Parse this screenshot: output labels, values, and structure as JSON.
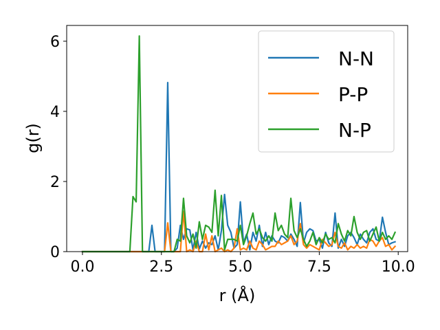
{
  "chart_data": {
    "type": "line",
    "xlabel": "r (Å)",
    "ylabel": "g(r)",
    "xlim": [
      -0.5,
      10.3
    ],
    "ylim": [
      0,
      6.45
    ],
    "xticks": [
      0.0,
      2.5,
      5.0,
      7.5,
      10.0
    ],
    "xtick_labels": [
      "0.0",
      "2.5",
      "5.0",
      "7.5",
      "10.0"
    ],
    "yticks": [
      0,
      2,
      4,
      6
    ],
    "ytick_labels": [
      "0",
      "2",
      "4",
      "6"
    ],
    "grid": false,
    "legend": "top-right",
    "series": [
      {
        "name": "N-N",
        "color": "#1f77b4",
        "points": [
          [
            0.0,
            0
          ],
          [
            0.1,
            0
          ],
          [
            0.2,
            0
          ],
          [
            0.3,
            0
          ],
          [
            0.4,
            0
          ],
          [
            0.5,
            0
          ],
          [
            0.6,
            0
          ],
          [
            0.7,
            0
          ],
          [
            0.8,
            0
          ],
          [
            0.9,
            0
          ],
          [
            1.0,
            0
          ],
          [
            1.1,
            0
          ],
          [
            1.2,
            0
          ],
          [
            1.3,
            0
          ],
          [
            1.4,
            0
          ],
          [
            1.5,
            0
          ],
          [
            1.6,
            0
          ],
          [
            1.7,
            0
          ],
          [
            1.8,
            0
          ],
          [
            1.9,
            0
          ],
          [
            2.0,
            0
          ],
          [
            2.1,
            0
          ],
          [
            2.2,
            0.75
          ],
          [
            2.3,
            0
          ],
          [
            2.4,
            0
          ],
          [
            2.5,
            0
          ],
          [
            2.6,
            0
          ],
          [
            2.7,
            4.82
          ],
          [
            2.8,
            0
          ],
          [
            2.9,
            0
          ],
          [
            3.0,
            0.1
          ],
          [
            3.1,
            0.75
          ],
          [
            3.2,
            0.35
          ],
          [
            3.3,
            0.65
          ],
          [
            3.4,
            0.62
          ],
          [
            3.5,
            0.05
          ],
          [
            3.6,
            0.55
          ],
          [
            3.7,
            0.08
          ],
          [
            3.8,
            0.3
          ],
          [
            3.9,
            0.1
          ],
          [
            4.0,
            0.25
          ],
          [
            4.1,
            0.2
          ],
          [
            4.2,
            0.45
          ],
          [
            4.3,
            0.05
          ],
          [
            4.4,
            0.6
          ],
          [
            4.5,
            1.63
          ],
          [
            4.6,
            0.75
          ],
          [
            4.7,
            0.55
          ],
          [
            4.8,
            0.1
          ],
          [
            4.9,
            0.2
          ],
          [
            5.0,
            1.42
          ],
          [
            5.1,
            0.25
          ],
          [
            5.2,
            0.5
          ],
          [
            5.3,
            0.05
          ],
          [
            5.4,
            0.55
          ],
          [
            5.5,
            0.3
          ],
          [
            5.6,
            0.75
          ],
          [
            5.7,
            0.15
          ],
          [
            5.8,
            0.55
          ],
          [
            5.9,
            0.2
          ],
          [
            6.0,
            0.45
          ],
          [
            6.1,
            0.3
          ],
          [
            6.2,
            0.25
          ],
          [
            6.3,
            0.45
          ],
          [
            6.4,
            0.4
          ],
          [
            6.5,
            0.3
          ],
          [
            6.6,
            0.5
          ],
          [
            6.7,
            0.35
          ],
          [
            6.8,
            0.15
          ],
          [
            6.9,
            1.4
          ],
          [
            7.0,
            0.25
          ],
          [
            7.1,
            0.55
          ],
          [
            7.2,
            0.65
          ],
          [
            7.3,
            0.6
          ],
          [
            7.4,
            0.3
          ],
          [
            7.5,
            0.35
          ],
          [
            7.6,
            0.1
          ],
          [
            7.7,
            0.55
          ],
          [
            7.8,
            0.25
          ],
          [
            7.9,
            0.15
          ],
          [
            8.0,
            1.1
          ],
          [
            8.1,
            0.1
          ],
          [
            8.2,
            0.35
          ],
          [
            8.3,
            0.15
          ],
          [
            8.4,
            0.45
          ],
          [
            8.5,
            0.55
          ],
          [
            8.6,
            0.4
          ],
          [
            8.7,
            0.2
          ],
          [
            8.8,
            0.5
          ],
          [
            8.9,
            0.35
          ],
          [
            9.0,
            0.25
          ],
          [
            9.1,
            0.55
          ],
          [
            9.2,
            0.65
          ],
          [
            9.3,
            0.35
          ],
          [
            9.4,
            0.3
          ],
          [
            9.5,
            0.98
          ],
          [
            9.6,
            0.55
          ],
          [
            9.7,
            0.2
          ],
          [
            9.8,
            0.25
          ],
          [
            9.9,
            0.28
          ]
        ]
      },
      {
        "name": "P-P",
        "color": "#ff7f0e",
        "points": [
          [
            0.0,
            0
          ],
          [
            0.1,
            0
          ],
          [
            0.2,
            0
          ],
          [
            0.3,
            0
          ],
          [
            0.4,
            0
          ],
          [
            0.5,
            0
          ],
          [
            0.6,
            0
          ],
          [
            0.7,
            0
          ],
          [
            0.8,
            0
          ],
          [
            0.9,
            0
          ],
          [
            1.0,
            0
          ],
          [
            1.1,
            0
          ],
          [
            1.2,
            0
          ],
          [
            1.3,
            0
          ],
          [
            1.4,
            0
          ],
          [
            1.5,
            0
          ],
          [
            1.6,
            0
          ],
          [
            1.7,
            0
          ],
          [
            1.8,
            0
          ],
          [
            1.9,
            0
          ],
          [
            2.0,
            0
          ],
          [
            2.1,
            0
          ],
          [
            2.2,
            0
          ],
          [
            2.3,
            0
          ],
          [
            2.4,
            0
          ],
          [
            2.5,
            0
          ],
          [
            2.6,
            0
          ],
          [
            2.7,
            0.82
          ],
          [
            2.8,
            0
          ],
          [
            2.9,
            0
          ],
          [
            3.0,
            0
          ],
          [
            3.1,
            0
          ],
          [
            3.2,
            1.15
          ],
          [
            3.3,
            0
          ],
          [
            3.4,
            0.05
          ],
          [
            3.5,
            0
          ],
          [
            3.6,
            0.3
          ],
          [
            3.7,
            0
          ],
          [
            3.8,
            0
          ],
          [
            3.9,
            0.5
          ],
          [
            4.0,
            0.05
          ],
          [
            4.1,
            0.45
          ],
          [
            4.2,
            0
          ],
          [
            4.3,
            0.05
          ],
          [
            4.4,
            0.1
          ],
          [
            4.5,
            0
          ],
          [
            4.6,
            0.05
          ],
          [
            4.7,
            0
          ],
          [
            4.8,
            0.1
          ],
          [
            4.9,
            0.65
          ],
          [
            5.0,
            0.05
          ],
          [
            5.1,
            0.1
          ],
          [
            5.2,
            0.05
          ],
          [
            5.3,
            0.3
          ],
          [
            5.4,
            0.1
          ],
          [
            5.5,
            0.05
          ],
          [
            5.6,
            0.3
          ],
          [
            5.7,
            0.2
          ],
          [
            5.8,
            0.05
          ],
          [
            5.9,
            0.1
          ],
          [
            6.0,
            0.15
          ],
          [
            6.1,
            0.15
          ],
          [
            6.2,
            0.3
          ],
          [
            6.3,
            0.2
          ],
          [
            6.4,
            0.25
          ],
          [
            6.5,
            0.3
          ],
          [
            6.6,
            0.45
          ],
          [
            6.7,
            0.2
          ],
          [
            6.8,
            0.3
          ],
          [
            6.9,
            0.8
          ],
          [
            7.0,
            0.2
          ],
          [
            7.1,
            0.1
          ],
          [
            7.2,
            0.2
          ],
          [
            7.3,
            0.15
          ],
          [
            7.4,
            0.1
          ],
          [
            7.5,
            0.05
          ],
          [
            7.6,
            0.35
          ],
          [
            7.7,
            0.25
          ],
          [
            7.8,
            0.15
          ],
          [
            7.9,
            0.2
          ],
          [
            8.0,
            0.55
          ],
          [
            8.1,
            0.15
          ],
          [
            8.2,
            0.1
          ],
          [
            8.3,
            0.25
          ],
          [
            8.4,
            0.05
          ],
          [
            8.5,
            0.15
          ],
          [
            8.6,
            0.1
          ],
          [
            8.7,
            0.2
          ],
          [
            8.8,
            0.1
          ],
          [
            8.9,
            0.15
          ],
          [
            9.0,
            0.1
          ],
          [
            9.1,
            0.35
          ],
          [
            9.2,
            0.3
          ],
          [
            9.3,
            0.15
          ],
          [
            9.4,
            0.3
          ],
          [
            9.5,
            0.4
          ],
          [
            9.6,
            0.15
          ],
          [
            9.7,
            0.2
          ],
          [
            9.8,
            0.05
          ],
          [
            9.9,
            0.15
          ]
        ]
      },
      {
        "name": "N-P",
        "color": "#2ca02c",
        "points": [
          [
            0.0,
            0
          ],
          [
            0.1,
            0
          ],
          [
            0.2,
            0
          ],
          [
            0.3,
            0
          ],
          [
            0.4,
            0
          ],
          [
            0.5,
            0
          ],
          [
            0.6,
            0
          ],
          [
            0.7,
            0
          ],
          [
            0.8,
            0
          ],
          [
            0.9,
            0
          ],
          [
            1.0,
            0
          ],
          [
            1.1,
            0
          ],
          [
            1.2,
            0
          ],
          [
            1.3,
            0
          ],
          [
            1.4,
            0
          ],
          [
            1.5,
            0
          ],
          [
            1.6,
            1.57
          ],
          [
            1.7,
            1.42
          ],
          [
            1.8,
            6.15
          ],
          [
            1.9,
            0
          ],
          [
            2.0,
            0
          ],
          [
            2.1,
            0
          ],
          [
            2.2,
            0
          ],
          [
            2.3,
            0
          ],
          [
            2.4,
            0
          ],
          [
            2.5,
            0
          ],
          [
            2.6,
            0
          ],
          [
            2.7,
            0
          ],
          [
            2.8,
            0
          ],
          [
            2.9,
            0
          ],
          [
            3.0,
            0.35
          ],
          [
            3.1,
            0.3
          ],
          [
            3.2,
            1.52
          ],
          [
            3.3,
            0.45
          ],
          [
            3.4,
            0.25
          ],
          [
            3.5,
            0.5
          ],
          [
            3.6,
            0.1
          ],
          [
            3.7,
            0.85
          ],
          [
            3.8,
            0.35
          ],
          [
            3.9,
            0.75
          ],
          [
            4.0,
            0.7
          ],
          [
            4.1,
            0.55
          ],
          [
            4.2,
            1.75
          ],
          [
            4.3,
            0.45
          ],
          [
            4.4,
            1.6
          ],
          [
            4.5,
            0.05
          ],
          [
            4.6,
            0.35
          ],
          [
            4.7,
            0.35
          ],
          [
            4.8,
            0.35
          ],
          [
            4.9,
            0.3
          ],
          [
            5.0,
            0.75
          ],
          [
            5.1,
            0.2
          ],
          [
            5.2,
            0.45
          ],
          [
            5.3,
            0.8
          ],
          [
            5.4,
            1.1
          ],
          [
            5.5,
            0.5
          ],
          [
            5.6,
            0.65
          ],
          [
            5.7,
            0.4
          ],
          [
            5.8,
            0.3
          ],
          [
            5.9,
            0.45
          ],
          [
            6.0,
            0.3
          ],
          [
            6.1,
            1.1
          ],
          [
            6.2,
            0.6
          ],
          [
            6.3,
            0.75
          ],
          [
            6.4,
            0.5
          ],
          [
            6.5,
            0.4
          ],
          [
            6.6,
            1.52
          ],
          [
            6.7,
            0.6
          ],
          [
            6.8,
            0.4
          ],
          [
            6.9,
            0.65
          ],
          [
            7.0,
            0.35
          ],
          [
            7.1,
            0.15
          ],
          [
            7.2,
            0.3
          ],
          [
            7.3,
            0.55
          ],
          [
            7.4,
            0.2
          ],
          [
            7.5,
            0.4
          ],
          [
            7.6,
            0.25
          ],
          [
            7.7,
            0.5
          ],
          [
            7.8,
            0.35
          ],
          [
            7.9,
            0.4
          ],
          [
            8.0,
            0.25
          ],
          [
            8.1,
            0.8
          ],
          [
            8.2,
            0.5
          ],
          [
            8.3,
            0.3
          ],
          [
            8.4,
            0.6
          ],
          [
            8.5,
            0.45
          ],
          [
            8.6,
            1.0
          ],
          [
            8.7,
            0.55
          ],
          [
            8.8,
            0.35
          ],
          [
            8.9,
            0.55
          ],
          [
            9.0,
            0.6
          ],
          [
            9.1,
            0.3
          ],
          [
            9.2,
            0.5
          ],
          [
            9.3,
            0.7
          ],
          [
            9.4,
            0.3
          ],
          [
            9.5,
            0.55
          ],
          [
            9.6,
            0.35
          ],
          [
            9.7,
            0.45
          ],
          [
            9.8,
            0.35
          ],
          [
            9.9,
            0.55
          ]
        ]
      }
    ]
  }
}
